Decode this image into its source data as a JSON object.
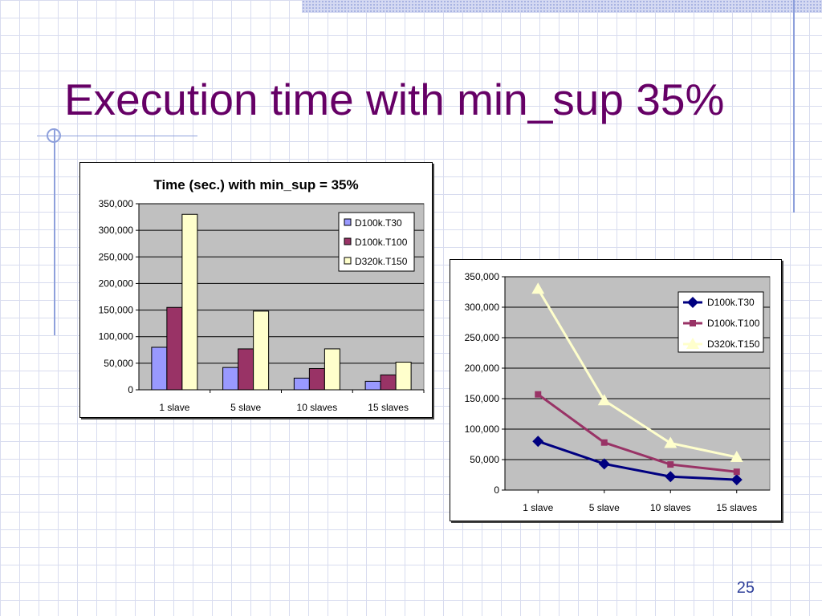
{
  "slide": {
    "title": "Execution time with min_sup 35%",
    "page_number": "25"
  },
  "chart_data": [
    {
      "type": "bar",
      "title": "Time (sec.) with min_sup = 35%",
      "categories": [
        "1 slave",
        "5 slave",
        "10 slaves",
        "15 slaves"
      ],
      "series": [
        {
          "name": "D100k.T30",
          "values": [
            80000,
            42000,
            22000,
            16000
          ],
          "color": "#9999ff"
        },
        {
          "name": "D100k.T100",
          "values": [
            155000,
            77000,
            40000,
            28000
          ],
          "color": "#993366"
        },
        {
          "name": "D320k.T150",
          "values": [
            330000,
            148000,
            77000,
            52000
          ],
          "color": "#ffffcc"
        }
      ],
      "ylim": [
        0,
        350000
      ],
      "yticks": [
        "0",
        "50,000",
        "100,000",
        "150,000",
        "200,000",
        "250,000",
        "300,000",
        "350,000"
      ],
      "grid": true,
      "legend": "top-right",
      "plot_background": "#c0c0c0"
    },
    {
      "type": "line",
      "title": "",
      "categories": [
        "1 slave",
        "5 slave",
        "10 slaves",
        "15 slaves"
      ],
      "series": [
        {
          "name": "D100k.T30",
          "values": [
            80000,
            43000,
            22000,
            17000
          ],
          "color": "#000080",
          "marker": "diamond"
        },
        {
          "name": "D100k.T100",
          "values": [
            157000,
            78000,
            42000,
            30000
          ],
          "color": "#993366",
          "marker": "square"
        },
        {
          "name": "D320k.T150",
          "values": [
            330000,
            147000,
            77000,
            54000
          ],
          "color": "#ffffcc",
          "marker": "triangle"
        }
      ],
      "ylim": [
        0,
        350000
      ],
      "yticks": [
        "0",
        "50,000",
        "100,000",
        "150,000",
        "200,000",
        "250,000",
        "300,000",
        "350,000"
      ],
      "grid": true,
      "legend": "top-right",
      "plot_background": "#c0c0c0"
    }
  ]
}
